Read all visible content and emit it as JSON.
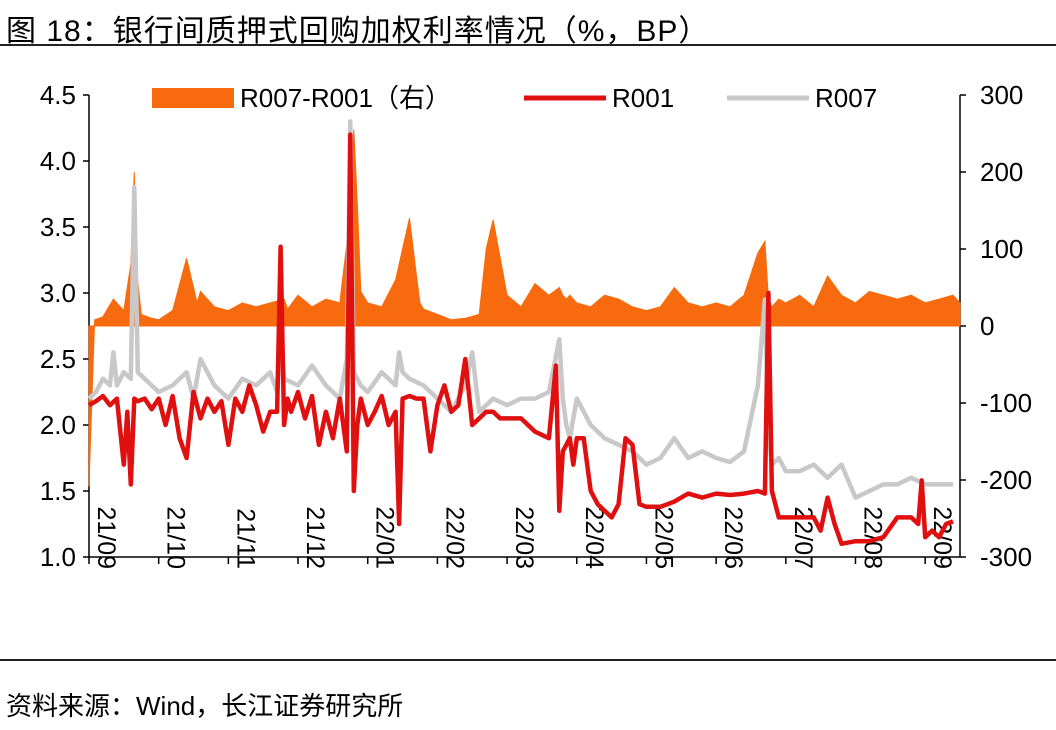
{
  "title": "图 18：银行间质押式回购加权利率情况（%，BP）",
  "source": "资料来源：Wind，长江证券研究所",
  "chart_data": {
    "type": "line+area",
    "left_axis": {
      "min": 1.0,
      "max": 4.5,
      "ticks": [
        "1.0",
        "1.5",
        "2.0",
        "2.5",
        "3.0",
        "3.5",
        "4.0",
        "4.5"
      ]
    },
    "right_axis": {
      "min": -300,
      "max": 300,
      "ticks": [
        "-300",
        "-200",
        "-100",
        "0",
        "100",
        "200",
        "300"
      ]
    },
    "x_ticks": [
      "21/09",
      "21/10",
      "21/11",
      "21/12",
      "22/01",
      "22/02",
      "22/03",
      "22/04",
      "22/05",
      "22/06",
      "22/07",
      "22/08",
      "22/09"
    ],
    "x_range": [
      0,
      12.5
    ],
    "legend": [
      "R007-R001（右）",
      "R001",
      "R007"
    ],
    "colors": {
      "spread": "#F76B0E",
      "r001": "#E01010",
      "r007": "#C8C8C8"
    },
    "series": [
      {
        "name": "R007-R001（右）",
        "axis": "right",
        "kind": "area",
        "x": [
          0.0,
          0.08,
          0.2,
          0.35,
          0.5,
          0.6,
          0.65,
          0.68,
          0.75,
          0.9,
          1.0,
          1.2,
          1.4,
          1.5,
          1.55,
          1.6,
          1.8,
          2.0,
          2.2,
          2.4,
          2.6,
          2.8,
          2.85,
          2.9,
          3.0,
          3.2,
          3.4,
          3.6,
          3.75,
          3.8,
          3.85,
          3.9,
          4.0,
          4.2,
          4.4,
          4.6,
          4.7,
          4.75,
          4.8,
          5.0,
          5.2,
          5.4,
          5.6,
          5.7,
          5.8,
          6.0,
          6.2,
          6.4,
          6.6,
          6.75,
          6.8,
          6.85,
          6.9,
          7.0,
          7.2,
          7.4,
          7.6,
          7.8,
          8.0,
          8.2,
          8.4,
          8.6,
          8.8,
          9.0,
          9.2,
          9.4,
          9.6,
          9.7,
          9.75,
          9.8,
          9.9,
          10.0,
          10.2,
          10.4,
          10.6,
          10.8,
          11.0,
          11.2,
          11.4,
          11.6,
          11.8,
          12.0,
          12.2,
          12.4,
          12.5
        ],
        "values": [
          -208,
          8,
          12,
          35,
          20,
          80,
          200,
          75,
          15,
          10,
          8,
          20,
          88,
          50,
          30,
          45,
          25,
          20,
          30,
          25,
          30,
          35,
          22,
          28,
          40,
          25,
          35,
          30,
          145,
          255,
          160,
          45,
          30,
          25,
          60,
          140,
          65,
          30,
          22,
          15,
          8,
          10,
          15,
          100,
          138,
          40,
          25,
          55,
          40,
          50,
          40,
          35,
          40,
          30,
          25,
          40,
          35,
          25,
          20,
          25,
          50,
          30,
          25,
          30,
          25,
          40,
          95,
          110,
          35,
          25,
          35,
          30,
          40,
          25,
          65,
          40,
          30,
          45,
          40,
          35,
          40,
          30,
          35,
          40,
          30
        ]
      },
      {
        "name": "R001",
        "axis": "left",
        "kind": "line",
        "x": [
          0.0,
          0.1,
          0.2,
          0.3,
          0.4,
          0.5,
          0.55,
          0.6,
          0.65,
          0.7,
          0.8,
          0.9,
          1.0,
          1.1,
          1.2,
          1.3,
          1.4,
          1.5,
          1.6,
          1.7,
          1.8,
          1.9,
          2.0,
          2.1,
          2.2,
          2.3,
          2.4,
          2.5,
          2.6,
          2.7,
          2.75,
          2.8,
          2.85,
          2.9,
          3.0,
          3.1,
          3.2,
          3.3,
          3.4,
          3.5,
          3.6,
          3.7,
          3.75,
          3.8,
          3.85,
          3.9,
          4.0,
          4.1,
          4.2,
          4.3,
          4.4,
          4.45,
          4.5,
          4.6,
          4.7,
          4.8,
          4.9,
          5.0,
          5.1,
          5.2,
          5.3,
          5.4,
          5.5,
          5.6,
          5.7,
          5.75,
          5.8,
          5.9,
          6.0,
          6.2,
          6.4,
          6.6,
          6.7,
          6.75,
          6.8,
          6.85,
          6.9,
          6.95,
          7.0,
          7.1,
          7.2,
          7.3,
          7.4,
          7.5,
          7.6,
          7.7,
          7.8,
          7.9,
          8.0,
          8.2,
          8.4,
          8.6,
          8.8,
          9.0,
          9.2,
          9.4,
          9.6,
          9.7,
          9.75,
          9.8,
          9.9,
          10.0,
          10.2,
          10.4,
          10.5,
          10.6,
          10.7,
          10.8,
          11.0,
          11.2,
          11.4,
          11.6,
          11.8,
          11.9,
          11.95,
          12.0,
          12.1,
          12.2,
          12.3,
          12.4
        ],
        "values": [
          2.15,
          2.18,
          2.22,
          2.15,
          2.2,
          1.7,
          2.1,
          1.55,
          2.2,
          2.18,
          2.2,
          2.12,
          2.2,
          2.0,
          2.22,
          1.9,
          1.75,
          2.25,
          2.05,
          2.2,
          2.1,
          2.18,
          1.85,
          2.2,
          2.1,
          2.3,
          2.15,
          1.95,
          2.1,
          2.1,
          3.35,
          2.0,
          2.2,
          2.1,
          2.25,
          2.05,
          2.22,
          1.85,
          2.1,
          1.9,
          2.2,
          1.8,
          4.2,
          1.5,
          2.0,
          2.2,
          2.0,
          2.1,
          2.22,
          2.0,
          2.1,
          1.25,
          2.2,
          2.22,
          2.2,
          2.2,
          1.8,
          2.15,
          2.3,
          2.1,
          2.15,
          2.5,
          2.0,
          2.05,
          2.1,
          2.1,
          2.1,
          2.05,
          2.05,
          2.05,
          1.95,
          1.9,
          2.45,
          1.35,
          1.8,
          1.85,
          1.9,
          1.7,
          1.9,
          1.9,
          1.5,
          1.4,
          1.35,
          1.3,
          1.4,
          1.9,
          1.85,
          1.4,
          1.38,
          1.38,
          1.42,
          1.48,
          1.45,
          1.48,
          1.47,
          1.48,
          1.5,
          1.48,
          3.0,
          1.5,
          1.3,
          1.3,
          1.3,
          1.3,
          1.2,
          1.45,
          1.25,
          1.1,
          1.12,
          1.12,
          1.15,
          1.3,
          1.3,
          1.25,
          1.58,
          1.15,
          1.2,
          1.15,
          1.25,
          1.27
        ]
      },
      {
        "name": "R007",
        "axis": "left",
        "kind": "line",
        "x": [
          0.0,
          0.1,
          0.2,
          0.3,
          0.35,
          0.4,
          0.5,
          0.6,
          0.65,
          0.7,
          0.8,
          0.9,
          1.0,
          1.2,
          1.4,
          1.5,
          1.6,
          1.8,
          2.0,
          2.2,
          2.4,
          2.6,
          2.7,
          2.75,
          2.8,
          3.0,
          3.2,
          3.4,
          3.6,
          3.7,
          3.75,
          3.8,
          3.9,
          4.0,
          4.2,
          4.4,
          4.45,
          4.5,
          4.6,
          4.8,
          5.0,
          5.2,
          5.4,
          5.5,
          5.6,
          5.8,
          6.0,
          6.2,
          6.4,
          6.6,
          6.75,
          6.8,
          6.85,
          6.9,
          7.0,
          7.2,
          7.4,
          7.6,
          7.8,
          8.0,
          8.2,
          8.4,
          8.6,
          8.8,
          9.0,
          9.2,
          9.4,
          9.6,
          9.7,
          9.75,
          9.8,
          9.9,
          10.0,
          10.2,
          10.4,
          10.6,
          10.8,
          11.0,
          11.2,
          11.4,
          11.6,
          11.8,
          12.0,
          12.2,
          12.4
        ],
        "values": [
          2.2,
          2.25,
          2.35,
          2.3,
          2.55,
          2.3,
          2.4,
          2.35,
          3.8,
          2.4,
          2.35,
          2.3,
          2.25,
          2.3,
          2.4,
          2.2,
          2.5,
          2.3,
          2.2,
          2.35,
          2.3,
          2.4,
          2.25,
          2.65,
          2.35,
          2.3,
          2.45,
          2.3,
          2.2,
          2.5,
          4.3,
          2.4,
          2.3,
          2.25,
          2.4,
          2.3,
          2.55,
          2.4,
          2.35,
          2.3,
          2.2,
          2.1,
          2.3,
          2.55,
          2.1,
          2.2,
          2.15,
          2.2,
          2.2,
          2.25,
          2.65,
          2.2,
          2.0,
          1.9,
          2.2,
          2.0,
          1.9,
          1.85,
          1.8,
          1.7,
          1.75,
          1.9,
          1.75,
          1.8,
          1.75,
          1.72,
          1.8,
          2.3,
          2.95,
          1.95,
          1.7,
          1.75,
          1.65,
          1.65,
          1.7,
          1.6,
          1.7,
          1.45,
          1.5,
          1.55,
          1.55,
          1.6,
          1.55,
          1.55,
          1.55
        ]
      }
    ]
  }
}
